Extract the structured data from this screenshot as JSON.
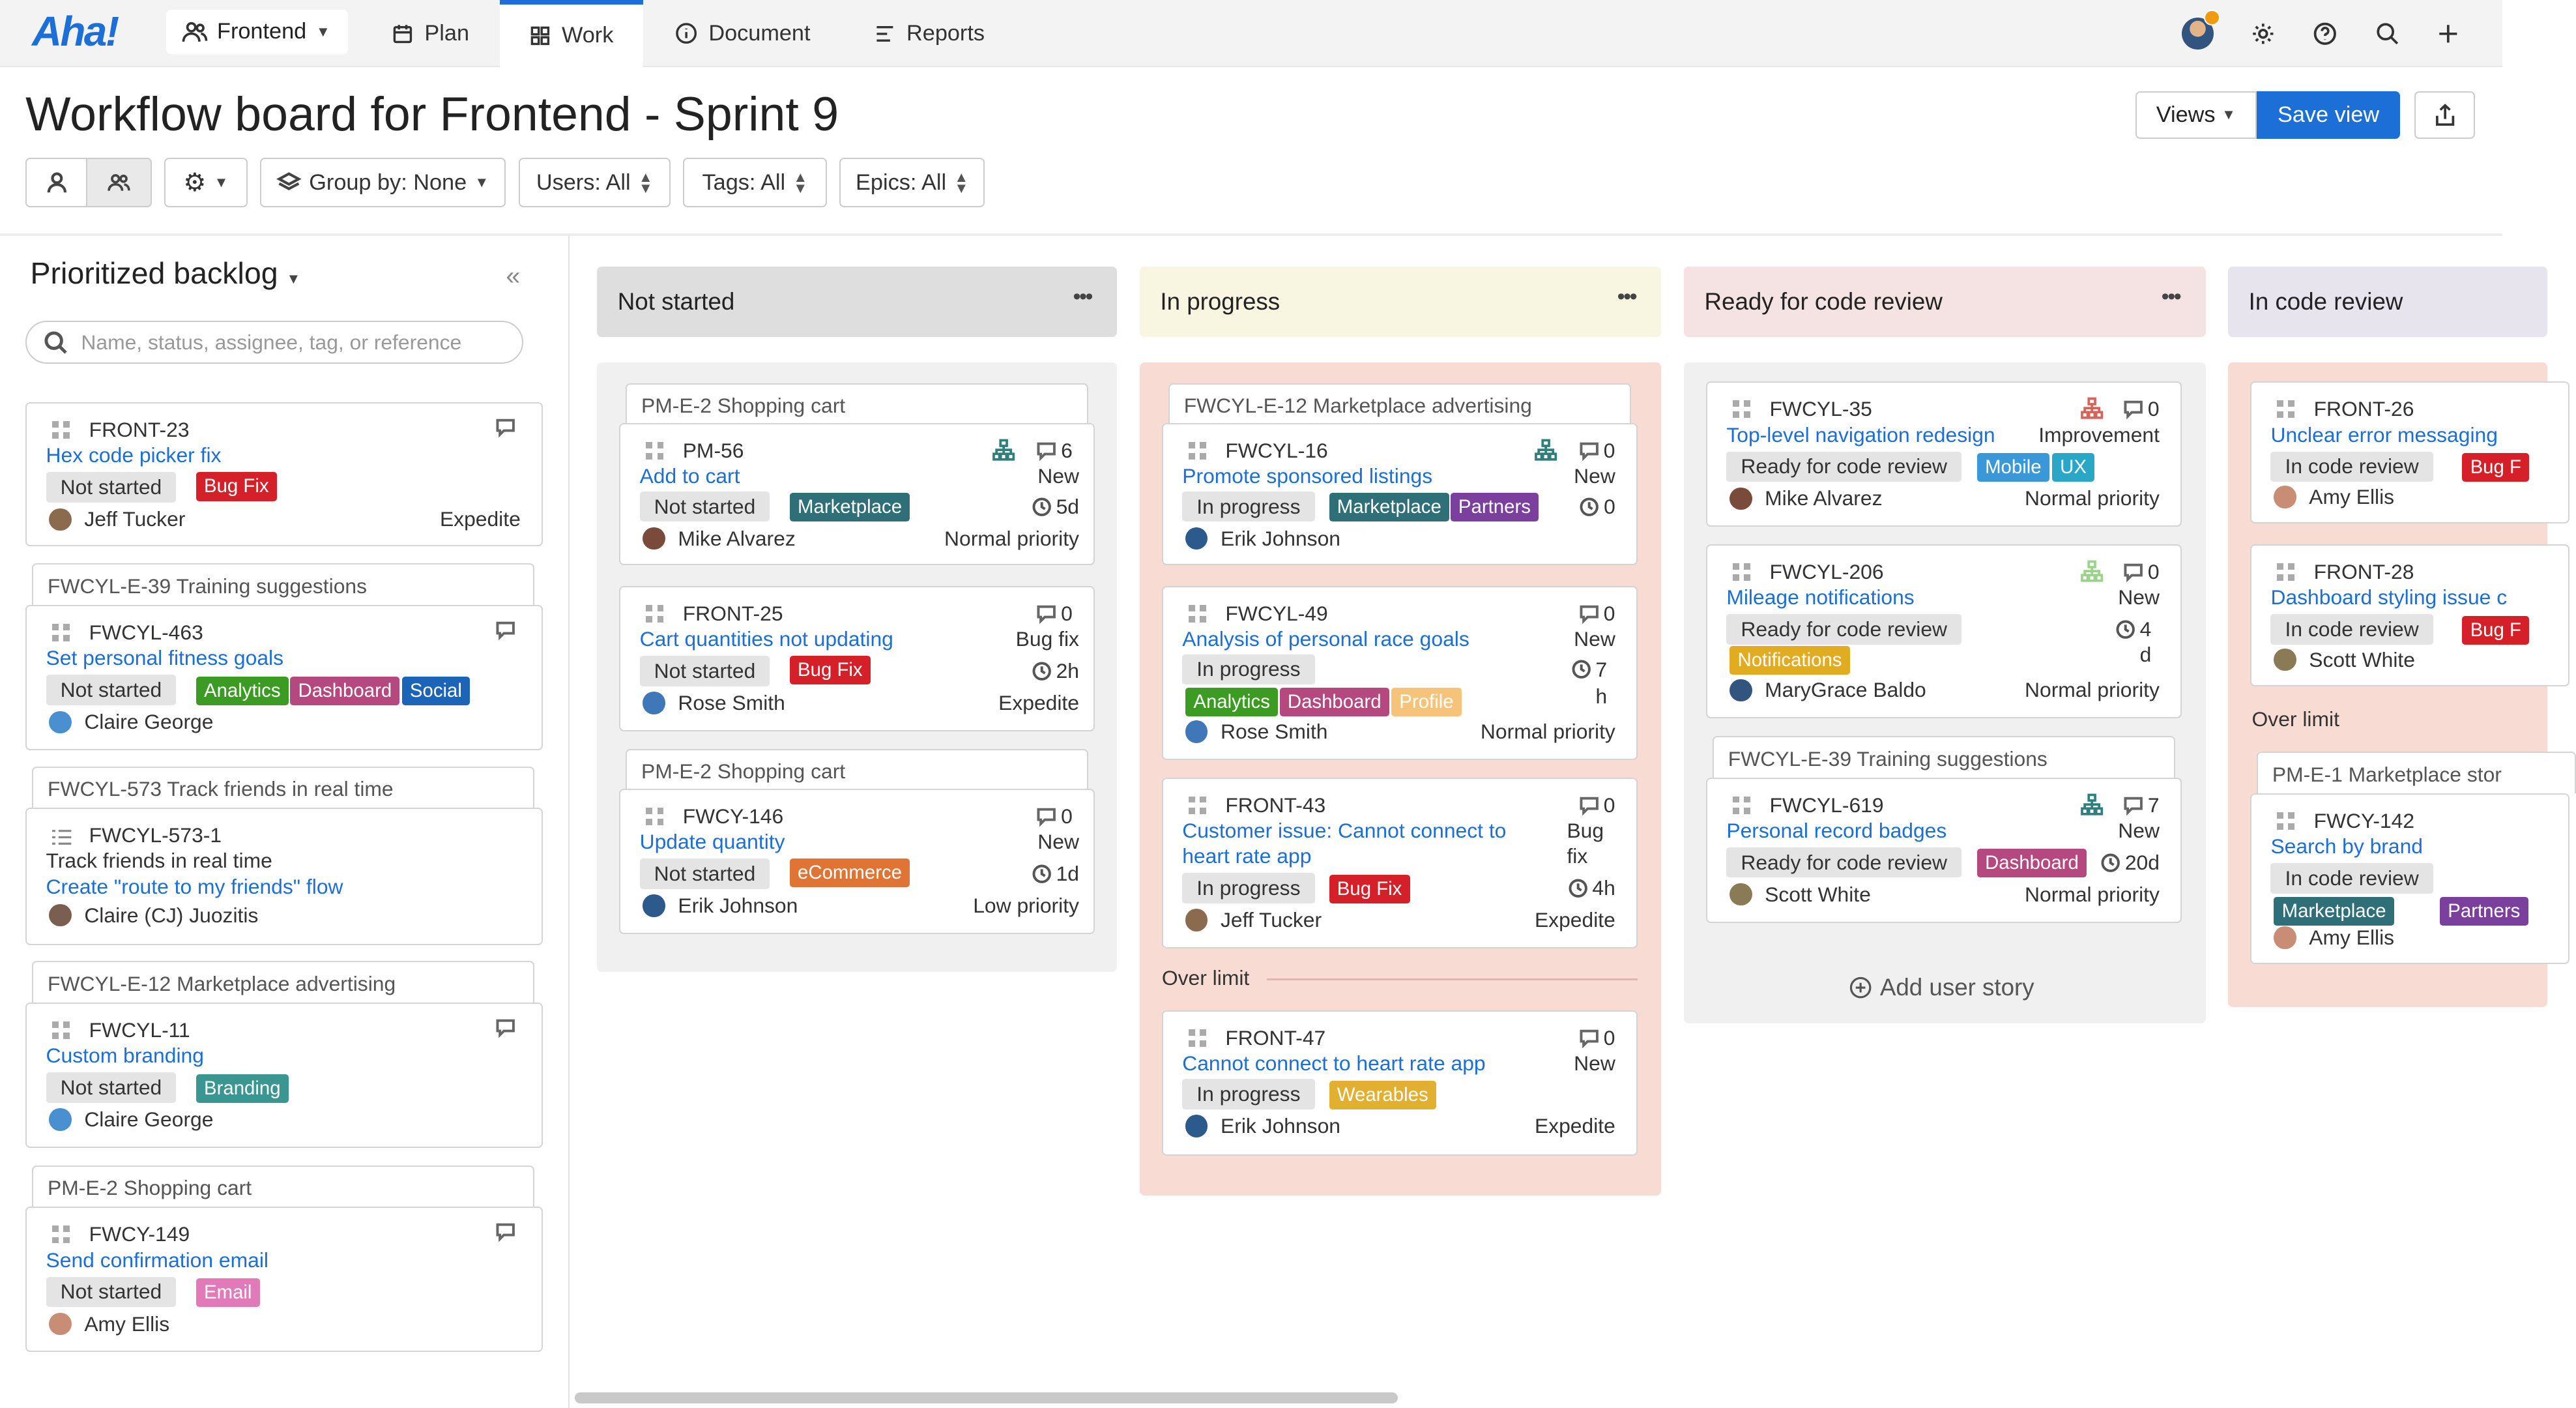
{
  "topbar": {
    "logo": "Aha!",
    "workspace": "Frontend",
    "nav": [
      {
        "label": "Plan"
      },
      {
        "label": "Work"
      },
      {
        "label": "Document"
      },
      {
        "label": "Reports"
      }
    ]
  },
  "page": {
    "title": "Workflow board for Frontend - Sprint 9"
  },
  "header_actions": {
    "views": "Views",
    "save_view": "Save view"
  },
  "filters": {
    "group_by": "Group by: None",
    "users": "Users: All",
    "tags": "Tags: All",
    "epics": "Epics: All"
  },
  "backlog": {
    "title": "Prioritized backlog",
    "search_placeholder": "Name, status, assignee, tag, or reference",
    "epics": [
      "FWCYL-E-39 Training suggestions",
      "FWCYL-573 Track friends in real time",
      "FWCYL-E-12 Marketplace advertising",
      "PM-E-2 Shopping cart"
    ],
    "cards": [
      {
        "ref": "FRONT-23",
        "name": "Hex code picker fix",
        "status": "Not started",
        "tags": [
          "Bug Fix"
        ],
        "assignee": "Jeff Tucker",
        "priority": "Expedite"
      },
      {
        "ref": "FWCYL-463",
        "name": "Set personal fitness goals",
        "status": "Not started",
        "tags": [
          "Analytics",
          "Dashboard",
          "Social"
        ],
        "assignee": "Claire George"
      },
      {
        "ref": "FWCYL-573-1",
        "desc": "Track friends in real time",
        "name": "Create \"route to my friends\" flow",
        "assignee": "Claire (CJ) Juozitis"
      },
      {
        "ref": "FWCYL-11",
        "name": "Custom branding",
        "status": "Not started",
        "tags": [
          "Branding"
        ],
        "assignee": "Claire George"
      },
      {
        "ref": "FWCY-149",
        "name": "Send confirmation email",
        "status": "Not started",
        "tags": [
          "Email"
        ],
        "assignee": "Amy Ellis"
      }
    ]
  },
  "columns": [
    {
      "title": "Not started",
      "epics": [
        "PM-E-2 Shopping cart",
        "PM-E-2 Shopping cart"
      ],
      "cards": [
        {
          "ref": "PM-56",
          "name": "Add to cart",
          "status": "Not started",
          "tags": [
            "Marketplace"
          ],
          "comments": "6",
          "type": "New",
          "estimate": "5d",
          "assignee": "Mike Alvarez",
          "priority": "Normal priority"
        },
        {
          "ref": "FRONT-25",
          "name": "Cart quantities not updating",
          "status": "Not started",
          "tags": [
            "Bug Fix"
          ],
          "comments": "0",
          "type": "Bug fix",
          "estimate": "2h",
          "assignee": "Rose Smith",
          "priority": "Expedite"
        },
        {
          "ref": "FWCY-146",
          "name": "Update quantity",
          "status": "Not started",
          "tags": [
            "eCommerce"
          ],
          "comments": "0",
          "type": "New",
          "estimate": "1d",
          "assignee": "Erik Johnson",
          "priority": "Low priority"
        }
      ]
    },
    {
      "title": "In progress",
      "epics": [
        "FWCYL-E-12 Marketplace advertising"
      ],
      "over_limit": "Over limit",
      "cards": [
        {
          "ref": "FWCYL-16",
          "name": "Promote sponsored listings",
          "status": "In progress",
          "tags": [
            "Marketplace",
            "Partners"
          ],
          "comments": "0",
          "type": "New",
          "estimate": "0",
          "assignee": "Erik Johnson"
        },
        {
          "ref": "FWCYL-49",
          "name": "Analysis of personal race goals",
          "status": "In progress",
          "tags": [
            "Analytics",
            "Dashboard",
            "Profile"
          ],
          "comments": "0",
          "type": "New",
          "estimate_a": "7",
          "estimate_b": "h",
          "assignee": "Rose Smith",
          "priority": "Normal priority"
        },
        {
          "ref": "FRONT-43",
          "name_a": "Customer issue: Cannot connect to",
          "name_b": "heart rate app",
          "status": "In progress",
          "tags": [
            "Bug Fix"
          ],
          "comments": "0",
          "type_a": "Bug",
          "type_b": "fix",
          "estimate": "4h",
          "assignee": "Jeff Tucker",
          "priority": "Expedite"
        },
        {
          "ref": "FRONT-47",
          "name": "Cannot connect to heart rate app",
          "status": "In progress",
          "tags": [
            "Wearables"
          ],
          "comments": "0",
          "type": "New",
          "assignee": "Erik Johnson",
          "priority": "Expedite"
        }
      ]
    },
    {
      "title": "Ready for code review",
      "epics": [
        "FWCYL-E-39 Training suggestions"
      ],
      "add_story": "Add user story",
      "cards": [
        {
          "ref": "FWCYL-35",
          "name": "Top-level navigation redesign",
          "status": "Ready for code review",
          "tags": [
            "Mobile",
            "UX"
          ],
          "comments": "0",
          "type": "Improvement",
          "assignee": "Mike Alvarez",
          "priority": "Normal priority"
        },
        {
          "ref": "FWCYL-206",
          "name": "Mileage notifications",
          "status": "Ready for code review",
          "tags": [
            "Notifications"
          ],
          "comments": "0",
          "type": "New",
          "estimate_a": "4",
          "estimate_b": "d",
          "assignee": "MaryGrace Baldo",
          "priority": "Normal priority"
        },
        {
          "ref": "FWCYL-619",
          "name": "Personal record badges",
          "status": "Ready for code review",
          "tags": [
            "Dashboard"
          ],
          "comments": "7",
          "type": "New",
          "estimate": "20d",
          "assignee": "Scott White",
          "priority": "Normal priority"
        }
      ]
    },
    {
      "title": "In code review",
      "epics": [
        "PM-E-1 Marketplace stor"
      ],
      "over_limit": "Over limit",
      "cards": [
        {
          "ref": "FRONT-26",
          "name": "Unclear error messaging",
          "status": "In code review",
          "tags": [
            "Bug F"
          ],
          "assignee": "Amy Ellis"
        },
        {
          "ref": "FRONT-28",
          "name": "Dashboard styling issue c",
          "status": "In code review",
          "tags": [
            "Bug F"
          ],
          "assignee": "Scott White"
        },
        {
          "ref": "FWCY-142",
          "name": "Search by brand",
          "status": "In code review",
          "tags": [
            "Marketplace",
            "Partners"
          ],
          "assignee": "Amy Ellis"
        }
      ]
    }
  ],
  "colors": {
    "accent": "#1b6fd6",
    "bug_fix": "#d5202a",
    "marketplace": "#2f6f78",
    "analytics": "#3b9b23",
    "dashboard": "#b5487e",
    "social": "#1b64b8",
    "branding": "#3a9690",
    "email": "#e17ab9",
    "partners": "#7b3f9e",
    "profile": "#f5c37a",
    "ecommerce": "#e07434",
    "mobile": "#3a97d8",
    "ux": "#2aa7c7",
    "notifications": "#e2ac22",
    "wearables": "#e2b030"
  },
  "icons": [
    "people-icon",
    "calendar-icon",
    "grid-icon",
    "info-icon",
    "reports-icon",
    "gear-icon",
    "help-icon",
    "search-icon",
    "plus-icon",
    "share-icon",
    "user-icon",
    "users-icon",
    "layers-icon",
    "comment-icon",
    "clock-icon",
    "hierarchy-icon",
    "drag-handle-icon",
    "plus-circle-icon"
  ]
}
